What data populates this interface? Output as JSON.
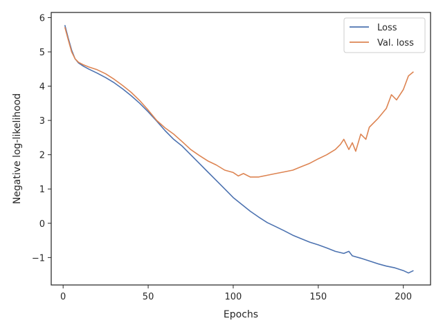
{
  "chart_data": {
    "type": "line",
    "xlabel": "Epochs",
    "ylabel": "Negative log-likelihood",
    "xlim": [
      -7,
      216
    ],
    "ylim": [
      -1.8,
      6.15
    ],
    "xticks": [
      0,
      50,
      100,
      150,
      200
    ],
    "yticks": [
      -1,
      0,
      1,
      2,
      3,
      4,
      5,
      6
    ],
    "ytick_labels": [
      "−1",
      "0",
      "1",
      "2",
      "3",
      "4",
      "5",
      "6"
    ],
    "grid": false,
    "legend_position": "top-right",
    "series": [
      {
        "name": "Loss",
        "color": "#4c72b0",
        "x": [
          1,
          3,
          5,
          7,
          9,
          12,
          15,
          20,
          25,
          30,
          35,
          40,
          45,
          50,
          55,
          60,
          65,
          70,
          75,
          80,
          85,
          90,
          95,
          100,
          105,
          110,
          115,
          120,
          125,
          130,
          135,
          140,
          145,
          150,
          155,
          160,
          165,
          168,
          170,
          175,
          180,
          185,
          190,
          195,
          200,
          203,
          206
        ],
        "y": [
          5.78,
          5.4,
          5.05,
          4.8,
          4.68,
          4.58,
          4.5,
          4.38,
          4.25,
          4.1,
          3.92,
          3.72,
          3.5,
          3.25,
          2.98,
          2.7,
          2.45,
          2.25,
          2.0,
          1.75,
          1.5,
          1.25,
          1.0,
          0.75,
          0.55,
          0.35,
          0.18,
          0.02,
          -0.1,
          -0.22,
          -0.35,
          -0.45,
          -0.55,
          -0.63,
          -0.72,
          -0.82,
          -0.88,
          -0.82,
          -0.95,
          -1.02,
          -1.1,
          -1.18,
          -1.25,
          -1.3,
          -1.38,
          -1.45,
          -1.38
        ]
      },
      {
        "name": "Val. loss",
        "color": "#dd8452",
        "x": [
          1,
          3,
          5,
          7,
          9,
          12,
          15,
          20,
          25,
          30,
          35,
          40,
          45,
          50,
          55,
          60,
          65,
          70,
          75,
          80,
          85,
          90,
          95,
          100,
          103,
          106,
          110,
          115,
          120,
          125,
          130,
          135,
          140,
          145,
          150,
          155,
          160,
          163,
          165,
          168,
          170,
          172,
          175,
          178,
          180,
          185,
          190,
          193,
          196,
          200,
          203,
          206
        ],
        "y": [
          5.72,
          5.35,
          5.0,
          4.8,
          4.7,
          4.62,
          4.56,
          4.48,
          4.36,
          4.2,
          4.02,
          3.82,
          3.58,
          3.3,
          3.0,
          2.78,
          2.6,
          2.38,
          2.15,
          1.98,
          1.82,
          1.7,
          1.55,
          1.48,
          1.38,
          1.45,
          1.35,
          1.35,
          1.4,
          1.45,
          1.5,
          1.55,
          1.65,
          1.75,
          1.88,
          2.0,
          2.15,
          2.3,
          2.45,
          2.15,
          2.35,
          2.1,
          2.6,
          2.45,
          2.8,
          3.05,
          3.35,
          3.75,
          3.6,
          3.9,
          4.3,
          4.42
        ]
      }
    ]
  }
}
